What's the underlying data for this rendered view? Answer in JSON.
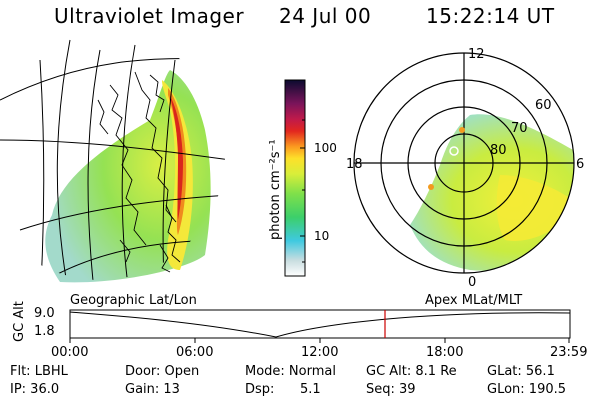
{
  "header": {
    "instrument": "Ultraviolet Imager",
    "date": "24 Jul 00",
    "time": "15:22:14 UT"
  },
  "colorbar": {
    "unit_label": "photon cm⁻²s⁻¹",
    "ticks": [
      "100",
      "10"
    ],
    "scale": "log"
  },
  "polar_plot": {
    "mlt_labels": [
      "12",
      "18",
      "6",
      "0"
    ],
    "mlat_labels": [
      "60",
      "70",
      "80"
    ]
  },
  "panels": {
    "left_caption": "Geographic Lat/Lon",
    "right_caption": "Apex MLat/MLT"
  },
  "altitude_plot": {
    "ylabel": "GC Alt",
    "y_ticks": [
      "9.0",
      "1.8"
    ],
    "x_ticks": [
      "00:00",
      "06:00",
      "12:00",
      "18:00",
      "23:59"
    ],
    "current_time_marker_color": "#cc0000"
  },
  "info": {
    "flt": "Flt: LBHL",
    "ip": "IP: 36.0",
    "door": "Door: Open",
    "gain": "Gain: 13",
    "mode": "Mode: Normal",
    "dsp_label": "Dsp:",
    "dsp_value": "5.1",
    "gcalt": "GC Alt: 8.1 Re",
    "seq": "Seq: 39",
    "glat": "GLat:  56.1",
    "glon": "GLon: 190.5"
  }
}
